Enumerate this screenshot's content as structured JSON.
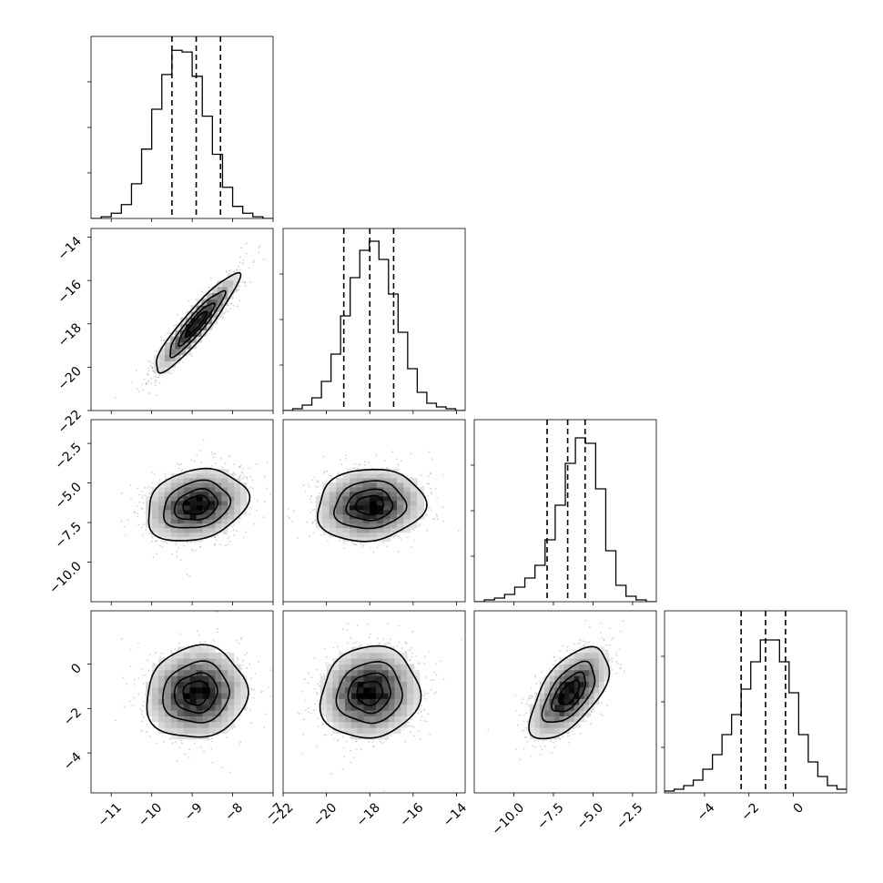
{
  "chart_data": {
    "type": "corner",
    "n_params": 4,
    "params": [
      {
        "ticks": [
          -11,
          -10,
          -9,
          -8,
          -7
        ],
        "labels": [
          "−11",
          "−10",
          "−9",
          "−8",
          "−7"
        ],
        "range": [
          -11.5,
          -7.0
        ]
      },
      {
        "ticks": [
          -22,
          -20,
          -18,
          -16,
          -14
        ],
        "labels": [
          "−22",
          "−20",
          "−18",
          "−16",
          "−14"
        ],
        "range": [
          -22.0,
          -13.6
        ]
      },
      {
        "ticks": [
          -10.0,
          -7.5,
          -5.0,
          -2.5
        ],
        "labels": [
          "−10.0",
          "−7.5",
          "−5.0",
          "−2.5"
        ],
        "range": [
          -12.5,
          -1.0
        ]
      },
      {
        "ticks": [
          -4,
          -2,
          0
        ],
        "labels": [
          "−4",
          "−2",
          "0"
        ],
        "range": [
          -5.8,
          2.4
        ]
      }
    ],
    "diagonal": [
      {
        "bin_range": [
          -11.5,
          -7.0
        ],
        "counts": [
          0,
          1,
          3,
          8,
          20,
          40,
          63,
          83,
          97,
          96,
          82,
          59,
          37,
          18,
          7,
          3,
          1,
          0
        ],
        "quantiles": [
          -9.5,
          -8.9,
          -8.3
        ],
        "ylim": [
          0,
          105
        ],
        "grid_y": [
          26.3,
          52.5,
          78.8
        ]
      },
      {
        "bin_range": [
          -22.0,
          -13.6
        ],
        "counts": [
          0,
          1,
          3,
          7,
          16,
          31,
          52,
          73,
          88,
          93,
          83,
          64,
          43,
          23,
          10,
          4,
          2,
          1,
          0
        ],
        "quantiles": [
          -19.2,
          -18.0,
          -16.9
        ],
        "ylim": [
          0,
          100
        ],
        "grid_y": [
          25,
          50,
          75
        ]
      },
      {
        "bin_range": [
          -12.5,
          -1.0
        ],
        "counts": [
          0,
          1,
          2,
          4,
          8,
          13,
          20,
          34,
          53,
          76,
          90,
          87,
          62,
          28,
          9,
          3,
          1,
          0
        ],
        "quantiles": [
          -7.9,
          -6.6,
          -5.5
        ],
        "ylim": [
          0,
          100
        ],
        "grid_y": [
          25,
          50,
          75
        ]
      },
      {
        "bin_range": [
          -5.8,
          2.4
        ],
        "counts": [
          1,
          2,
          4,
          7,
          13,
          21,
          32,
          43,
          57,
          72,
          84,
          84,
          72,
          55,
          32,
          17,
          9,
          4,
          2
        ],
        "quantiles": [
          -2.35,
          -1.25,
          -0.35
        ],
        "ylim": [
          0,
          100
        ],
        "grid_y": [
          25,
          50,
          75
        ]
      }
    ],
    "pairs": [
      {
        "row": 1,
        "col": 0,
        "mean": [
          -8.9,
          -18.0
        ],
        "sd": [
          0.5,
          1.1
        ],
        "rho": 0.92
      },
      {
        "row": 2,
        "col": 0,
        "mean": [
          -8.9,
          -6.4
        ],
        "sd": [
          0.6,
          1.1
        ],
        "rho": 0.22
      },
      {
        "row": 2,
        "col": 1,
        "mean": [
          -18.0,
          -6.4
        ],
        "sd": [
          1.2,
          1.1
        ],
        "rho": 0.1
      },
      {
        "row": 3,
        "col": 0,
        "mean": [
          -8.9,
          -1.3
        ],
        "sd": [
          0.6,
          1.0
        ],
        "rho": 0.08
      },
      {
        "row": 3,
        "col": 1,
        "mean": [
          -18.0,
          -1.3
        ],
        "sd": [
          1.1,
          1.0
        ],
        "rho": 0.08
      },
      {
        "row": 3,
        "col": 2,
        "mean": [
          -6.5,
          -1.3
        ],
        "sd": [
          1.2,
          1.0
        ],
        "rho": 0.6
      }
    ],
    "contour_levels_sigma": [
      0.5,
      1.0,
      1.5,
      2.0
    ],
    "grid": true,
    "legend": "none"
  }
}
